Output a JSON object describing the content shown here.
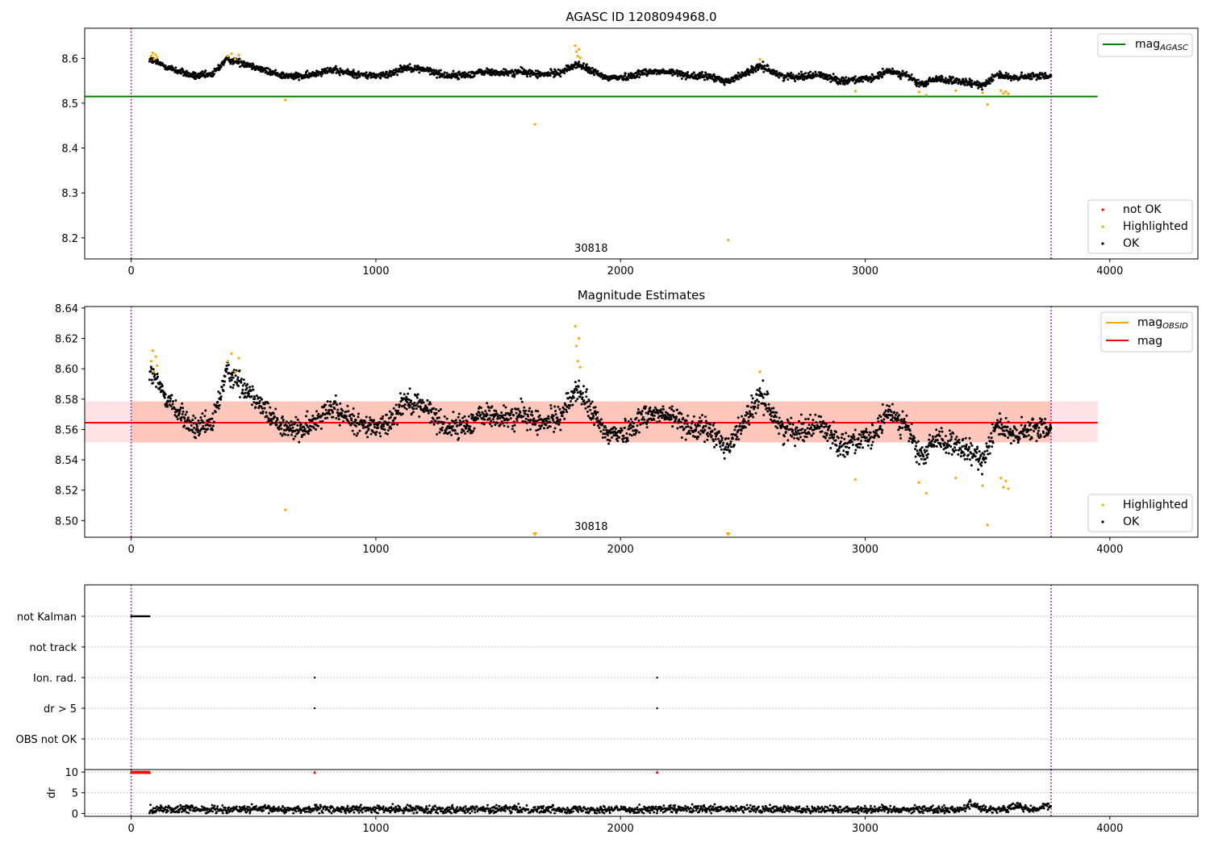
{
  "chart_data": [
    {
      "type": "scatter",
      "title": "AGASC ID 1208094968.0",
      "xlabel": "",
      "ylabel": "",
      "xlim": [
        -190,
        4360
      ],
      "ylim": [
        8.153,
        8.667
      ],
      "xticks": [
        0,
        1000,
        2000,
        3000,
        4000
      ],
      "yticks": [
        "8.2",
        "8.3",
        "8.4",
        "8.5",
        "8.6"
      ],
      "grid": false,
      "obsid_label": "30818",
      "obsid_label_x": 1880,
      "obs_boundaries": [
        0,
        3760
      ],
      "lines": [
        {
          "name": "mag_AGASC",
          "legend_main": "mag",
          "legend_sub": "AGASC",
          "y": 8.515,
          "x_range": [
            -190,
            3950
          ],
          "color": "#008000"
        }
      ],
      "series": [
        {
          "name": "not OK",
          "color": "#ff0000",
          "points": []
        },
        {
          "name": "Highlighted",
          "color": "#ffa500",
          "points": [
            [
              82,
              8.605
            ],
            [
              88,
              8.612
            ],
            [
              94,
              8.598
            ],
            [
              100,
              8.608
            ],
            [
              106,
              8.602
            ],
            [
              395,
              8.605
            ],
            [
              410,
              8.61
            ],
            [
              425,
              8.598
            ],
            [
              440,
              8.607
            ],
            [
              630,
              8.507
            ],
            [
              1650,
              8.453
            ],
            [
              1815,
              8.628
            ],
            [
              1820,
              8.615
            ],
            [
              1825,
              8.605
            ],
            [
              1830,
              8.62
            ],
            [
              1835,
              8.601
            ],
            [
              2440,
              8.195
            ],
            [
              2570,
              8.598
            ],
            [
              2960,
              8.527
            ],
            [
              3220,
              8.525
            ],
            [
              3250,
              8.518
            ],
            [
              3370,
              8.528
            ],
            [
              3480,
              8.523
            ],
            [
              3500,
              8.497
            ],
            [
              3555,
              8.528
            ],
            [
              3565,
              8.522
            ],
            [
              3575,
              8.526
            ],
            [
              3585,
              8.521
            ]
          ]
        },
        {
          "name": "OK",
          "color": "#000000",
          "points": []
        }
      ],
      "ok_curve": {
        "x_range": [
          75,
          3760
        ],
        "knots": [
          [
            75,
            8.598
          ],
          [
            150,
            8.58
          ],
          [
            200,
            8.57
          ],
          [
            260,
            8.56
          ],
          [
            330,
            8.563
          ],
          [
            390,
            8.598
          ],
          [
            440,
            8.592
          ],
          [
            500,
            8.583
          ],
          [
            560,
            8.57
          ],
          [
            640,
            8.56
          ],
          [
            720,
            8.56
          ],
          [
            800,
            8.575
          ],
          [
            880,
            8.568
          ],
          [
            960,
            8.562
          ],
          [
            1040,
            8.562
          ],
          [
            1120,
            8.58
          ],
          [
            1200,
            8.575
          ],
          [
            1280,
            8.562
          ],
          [
            1360,
            8.562
          ],
          [
            1440,
            8.57
          ],
          [
            1520,
            8.567
          ],
          [
            1600,
            8.57
          ],
          [
            1680,
            8.563
          ],
          [
            1760,
            8.57
          ],
          [
            1820,
            8.587
          ],
          [
            1870,
            8.575
          ],
          [
            1940,
            8.557
          ],
          [
            2020,
            8.558
          ],
          [
            2100,
            8.57
          ],
          [
            2160,
            8.57
          ],
          [
            2230,
            8.567
          ],
          [
            2300,
            8.56
          ],
          [
            2360,
            8.56
          ],
          [
            2440,
            8.548
          ],
          [
            2520,
            8.57
          ],
          [
            2580,
            8.582
          ],
          [
            2660,
            8.56
          ],
          [
            2740,
            8.56
          ],
          [
            2820,
            8.563
          ],
          [
            2900,
            8.55
          ],
          [
            2960,
            8.553
          ],
          [
            3020,
            8.553
          ],
          [
            3100,
            8.572
          ],
          [
            3170,
            8.562
          ],
          [
            3230,
            8.54
          ],
          [
            3290,
            8.555
          ],
          [
            3350,
            8.55
          ],
          [
            3420,
            8.545
          ],
          [
            3480,
            8.54
          ],
          [
            3540,
            8.565
          ],
          [
            3600,
            8.555
          ],
          [
            3680,
            8.56
          ],
          [
            3760,
            8.562
          ]
        ],
        "noise": 0.007
      },
      "legends": [
        {
          "placement": "upper right",
          "entries": [
            {
              "label": "mag",
              "sub": "AGASC"
            }
          ]
        },
        {
          "placement": "lower right",
          "entries": [
            {
              "label": "not OK"
            },
            {
              "label": "Highlighted"
            },
            {
              "label": "OK"
            }
          ]
        }
      ]
    },
    {
      "type": "scatter",
      "title": "Magnitude Estimates",
      "xlabel": "",
      "ylabel": "",
      "xlim": [
        -190,
        4360
      ],
      "ylim": [
        8.489,
        8.641
      ],
      "xticks": [
        0,
        1000,
        2000,
        3000,
        4000
      ],
      "yticks": [
        "8.50",
        "8.52",
        "8.54",
        "8.56",
        "8.58",
        "8.60",
        "8.62",
        "8.64"
      ],
      "grid": false,
      "obsid_label": "30818",
      "obsid_label_x": 1880,
      "obs_boundaries": [
        0,
        3760
      ],
      "bands": [
        {
          "x_range": [
            -190,
            3950
          ],
          "y_range": [
            8.5515,
            8.5785
          ],
          "color": "#ffb6c1",
          "opacity": 0.4
        },
        {
          "x_range": [
            0,
            3760
          ],
          "y_range": [
            8.5515,
            8.5785
          ],
          "color": "#ffa07a",
          "opacity": 0.4
        }
      ],
      "lines": [
        {
          "name": "mag_OBSID",
          "legend_main": "mag",
          "legend_sub": "OBSID",
          "y": 8.5645,
          "x_range": [
            0,
            3760
          ],
          "color": "#ffa500"
        },
        {
          "name": "mag",
          "y": 8.5645,
          "x_range": [
            -190,
            3950
          ],
          "color": "#ff0000"
        }
      ],
      "series": [
        {
          "name": "Highlighted",
          "color": "#ffa500",
          "points": [
            [
              82,
              8.605
            ],
            [
              88,
              8.612
            ],
            [
              94,
              8.598
            ],
            [
              100,
              8.608
            ],
            [
              106,
              8.602
            ],
            [
              395,
              8.605
            ],
            [
              410,
              8.61
            ],
            [
              425,
              8.598
            ],
            [
              440,
              8.607
            ],
            [
              630,
              8.507
            ],
            [
              1815,
              8.628
            ],
            [
              1820,
              8.615
            ],
            [
              1825,
              8.605
            ],
            [
              1830,
              8.62
            ],
            [
              1835,
              8.601
            ],
            [
              2570,
              8.598
            ],
            [
              2960,
              8.527
            ],
            [
              3220,
              8.525
            ],
            [
              3250,
              8.518
            ],
            [
              3370,
              8.528
            ],
            [
              3480,
              8.523
            ],
            [
              3500,
              8.497
            ],
            [
              3555,
              8.528
            ],
            [
              3565,
              8.522
            ],
            [
              3575,
              8.526
            ],
            [
              3585,
              8.521
            ]
          ]
        },
        {
          "name": "OK",
          "color": "#000000",
          "points": []
        }
      ],
      "offscale_markers": [
        {
          "x": 1650,
          "color": "#ffa500"
        },
        {
          "x": 2440,
          "color": "#ffa500"
        }
      ],
      "legends": [
        {
          "placement": "upper right",
          "entries": [
            {
              "label": "mag",
              "sub": "OBSID"
            },
            {
              "label": "mag"
            }
          ]
        },
        {
          "placement": "lower right",
          "entries": [
            {
              "label": "Highlighted"
            },
            {
              "label": "OK"
            }
          ]
        }
      ]
    },
    {
      "type": "scatter",
      "title": "",
      "xlabel": "",
      "xlim": [
        -190,
        4360
      ],
      "xticks": [
        0,
        1000,
        2000,
        3000,
        4000
      ],
      "categories": [
        "not Kalman",
        "not track",
        "Ion. rad.",
        "dr > 5",
        "OBS not OK"
      ],
      "grid": "y-dotted",
      "obs_boundaries": [
        0,
        3760
      ],
      "flags": [
        {
          "category": "not Kalman",
          "x_range": [
            0,
            75
          ],
          "color": "#000000"
        },
        {
          "category": "Ion. rad.",
          "x": [
            750,
            2150
          ],
          "color": "#000000"
        },
        {
          "category": "dr > 5",
          "x": [
            750,
            2150
          ],
          "color": "#000000"
        }
      ]
    },
    {
      "type": "scatter",
      "title": "",
      "xlabel": "",
      "ylabel": "dr",
      "xlim": [
        -190,
        4360
      ],
      "ylim": [
        -0.7,
        10.6
      ],
      "xticks": [
        0,
        1000,
        2000,
        3000,
        4000
      ],
      "yticks": [
        "0",
        "5",
        "10"
      ],
      "grid": "y-dotted",
      "obs_boundaries": [
        0,
        3760
      ],
      "clipped_markers": [
        {
          "x_range": [
            0,
            75
          ],
          "y": 10,
          "color": "#ff0000"
        },
        {
          "x": [
            750,
            2150
          ],
          "y": 10,
          "color": "#ff0000"
        }
      ],
      "dr_curve": {
        "x_range": [
          75,
          3760
        ],
        "base": 1.0,
        "noise": 0.45,
        "bumps": [
          [
            3440,
            2.4
          ],
          [
            3620,
            1.8
          ],
          [
            3740,
            1.8
          ]
        ],
        "color": "#000000"
      }
    }
  ]
}
